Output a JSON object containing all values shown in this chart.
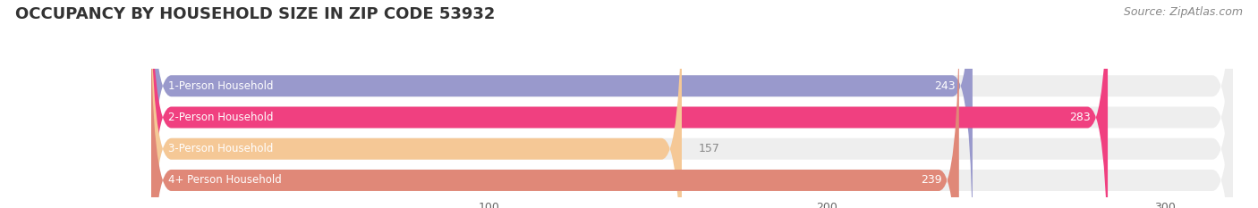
{
  "title": "OCCUPANCY BY HOUSEHOLD SIZE IN ZIP CODE 53932",
  "source": "Source: ZipAtlas.com",
  "categories": [
    "1-Person Household",
    "2-Person Household",
    "3-Person Household",
    "4+ Person Household"
  ],
  "values": [
    243,
    283,
    157,
    239
  ],
  "bar_colors": [
    "#9999cc",
    "#f04080",
    "#f5c896",
    "#e08878"
  ],
  "bg_color": "#ffffff",
  "bar_track_color": "#eeeeee",
  "xlim_max": 320,
  "xticks": [
    100,
    200,
    300
  ],
  "label_color_inside": "#ffffff",
  "label_color_outside": "#888888",
  "title_fontsize": 13,
  "source_fontsize": 9,
  "tick_fontsize": 9,
  "bar_label_fontsize": 9,
  "category_fontsize": 8.5,
  "threshold_inside": 200,
  "bar_height": 0.68,
  "bar_gap": 1.0
}
